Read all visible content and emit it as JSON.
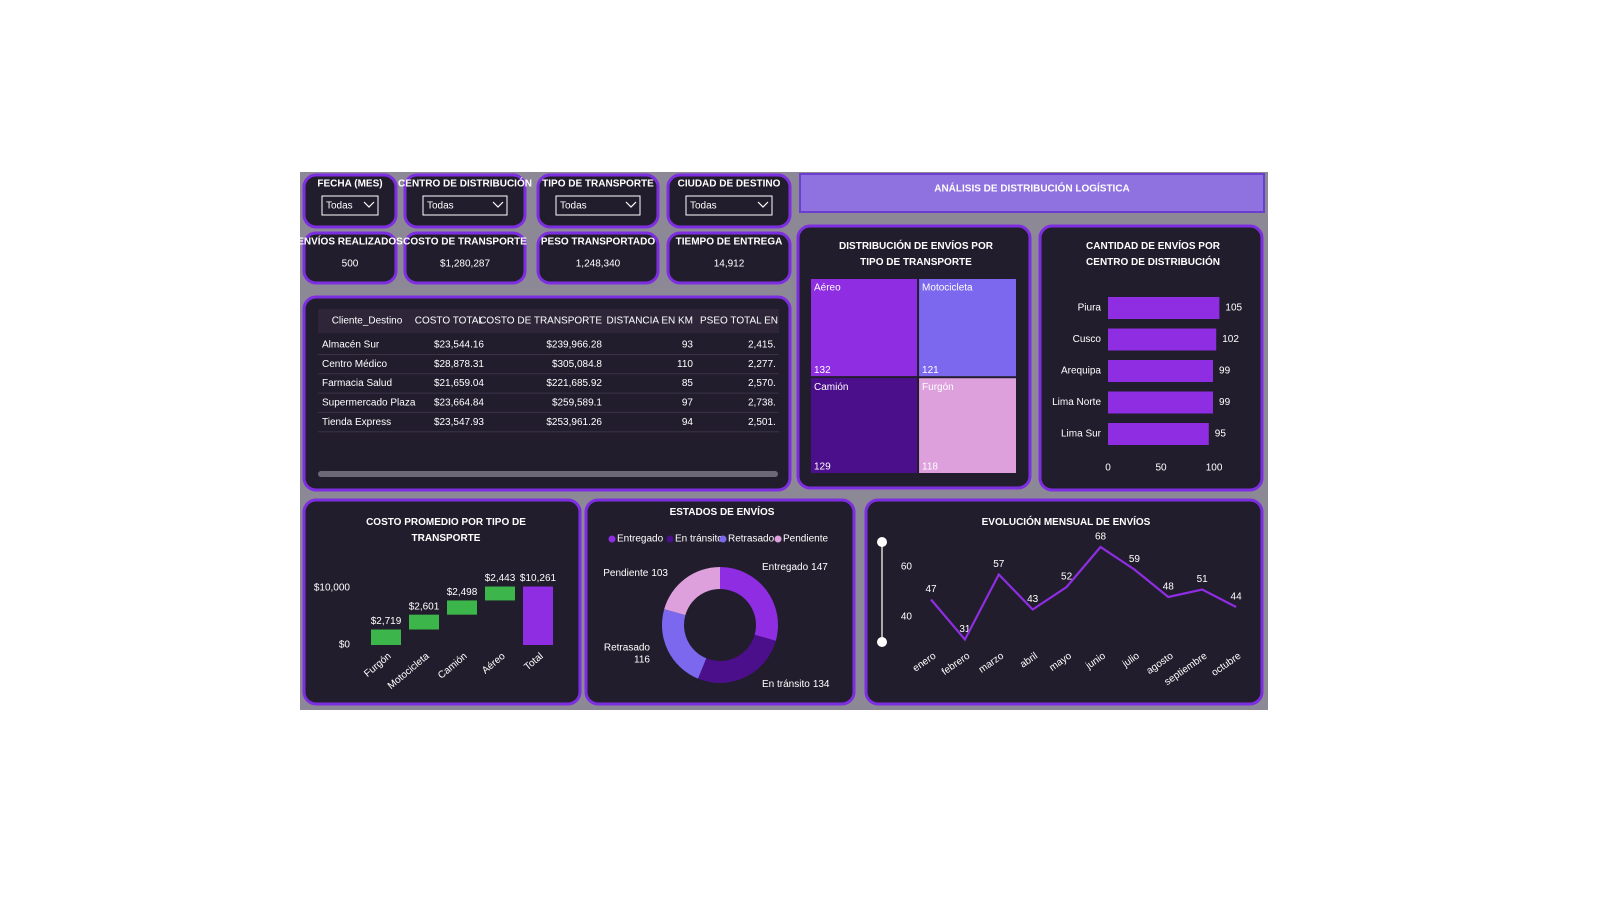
{
  "header": {
    "title": "ANÁLISIS DE DISTRIBUCIÓN LOGÍSTICA"
  },
  "filters": [
    {
      "label": "FECHA (MES)",
      "value": "Todas"
    },
    {
      "label": "CENTRO DE DISTRIBUCIÓN",
      "value": "Todas"
    },
    {
      "label": "TIPO DE TRANSPORTE",
      "value": "Todas"
    },
    {
      "label": "CIUDAD DE DESTINO",
      "value": "Todas"
    }
  ],
  "kpis": [
    {
      "label": "ENVÍOS REALIZADOS",
      "value": "500"
    },
    {
      "label": "COSTO DE TRANSPORTE",
      "value": "$1,280,287"
    },
    {
      "label": "PESO TRANSPORTADO",
      "value": "1,248,340"
    },
    {
      "label": "TIEMPO DE ENTREGA",
      "value": "14,912"
    }
  ],
  "table": {
    "columns": [
      "Cliente_Destino",
      "COSTO TOTAL",
      "COSTO DE TRANSPORTE",
      "DISTANCIA EN KM",
      "PSEO TOTAL EN K"
    ],
    "rows": [
      [
        "Almacén Sur",
        "$23,544.16",
        "$239,966.28",
        93,
        "2,415."
      ],
      [
        "Centro Médico",
        "$28,878.31",
        "$305,084.8",
        110,
        "2,277."
      ],
      [
        "Farmacia Salud",
        "$21,659.04",
        "$221,685.92",
        85,
        "2,570."
      ],
      [
        "Supermercado Plaza",
        "$23,664.84",
        "$259,589.1",
        97,
        "2,738."
      ],
      [
        "Tienda Express",
        "$23,547.93",
        "$253,961.26",
        94,
        "2,501."
      ]
    ]
  },
  "chart_data": [
    {
      "type": "treemap",
      "title": "DISTRIBUCIÓN DE ENVÍOS POR TIPO DE TRANSPORTE",
      "categories": [
        "Aéreo",
        "Motocicleta",
        "Camión",
        "Furgón"
      ],
      "values": [
        132,
        121,
        129,
        118
      ],
      "colors": [
        "#8e2de2",
        "#7b68ee",
        "#4b0f8c",
        "#dda0dd"
      ]
    },
    {
      "type": "hbar",
      "title": "CANTIDAD DE ENVÍOS POR CENTRO DE DISTRIBUCIÓN",
      "categories": [
        "Piura",
        "Cusco",
        "Arequipa",
        "Lima Norte",
        "Lima Sur"
      ],
      "values": [
        105,
        102,
        99,
        99,
        95
      ],
      "color": "#8e2de2",
      "xlim": [
        0,
        115
      ],
      "xticks": [
        0,
        50,
        100
      ]
    },
    {
      "type": "waterfall",
      "title": "COSTO PROMEDIO POR TIPO DE TRANSPORTE",
      "categories": [
        "Furgón",
        "Motocicleta",
        "Camión",
        "Aéreo",
        "Total"
      ],
      "values": [
        2719,
        2601,
        2498,
        2443,
        10261
      ],
      "value_labels": [
        "$2,719",
        "$2,601",
        "$2,498",
        "$2,443",
        "$10,261"
      ],
      "colors": {
        "increase": "#3cb54a",
        "total": "#8e2de2"
      },
      "ylim": [
        0,
        12000
      ],
      "yticks": [
        {
          "value": 0,
          "label": "$0"
        },
        {
          "value": 10000,
          "label": "$10,000"
        }
      ]
    },
    {
      "type": "donut",
      "title": "ESTADOS DE ENVÍOS",
      "categories": [
        "Entregado",
        "En tránsito",
        "Retrasado",
        "Pendiente"
      ],
      "values": [
        147,
        134,
        116,
        103
      ],
      "colors": [
        "#8e2de2",
        "#4b0f8c",
        "#7b68ee",
        "#dda0dd"
      ]
    },
    {
      "type": "line",
      "title": "EVOLUCIÓN MENSUAL DE ENVÍOS",
      "categories": [
        "enero",
        "febrero",
        "marzo",
        "abril",
        "mayo",
        "junio",
        "julio",
        "agosto",
        "septiembre",
        "octubre"
      ],
      "values": [
        47,
        31,
        57,
        43,
        52,
        68,
        59,
        48,
        51,
        44
      ],
      "color": "#8e2de2",
      "ylim": [
        28,
        70
      ],
      "yticks": [
        40,
        60
      ]
    }
  ]
}
